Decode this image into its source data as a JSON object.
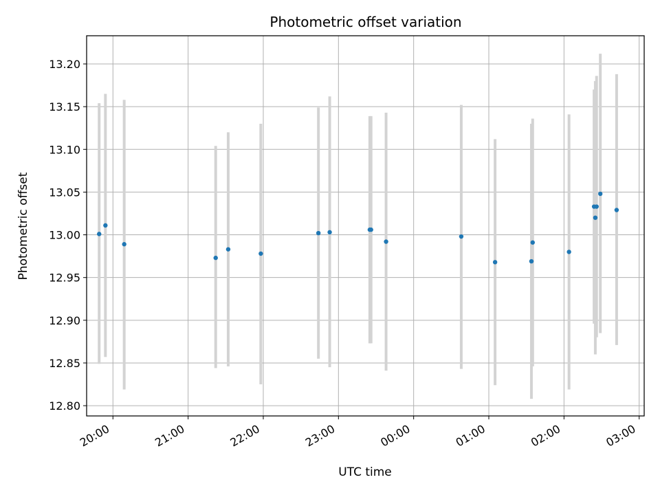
{
  "chart_data": {
    "type": "scatter",
    "title": "Photometric offset variation",
    "xlabel": "UTC time",
    "ylabel": "Photometric offset",
    "x_axis": "time",
    "xlim": [
      "19:39",
      "27:04"
    ],
    "ylim": [
      12.788,
      13.233
    ],
    "grid": true,
    "legend": "none",
    "marker_color": "#1f77b4",
    "errorbar_color": "#d3d3d3",
    "x_ticks": [
      {
        "label": "20:00",
        "t": "20:00"
      },
      {
        "label": "21:00",
        "t": "21:00"
      },
      {
        "label": "22:00",
        "t": "22:00"
      },
      {
        "label": "23:00",
        "t": "23:00"
      },
      {
        "label": "00:00",
        "t": "24:00"
      },
      {
        "label": "01:00",
        "t": "25:00"
      },
      {
        "label": "02:00",
        "t": "26:00"
      },
      {
        "label": "03:00",
        "t": "27:00"
      }
    ],
    "y_ticks": [
      {
        "label": "12.80",
        "v": 12.8
      },
      {
        "label": "12.85",
        "v": 12.85
      },
      {
        "label": "12.90",
        "v": 12.9
      },
      {
        "label": "12.95",
        "v": 12.95
      },
      {
        "label": "13.00",
        "v": 13.0
      },
      {
        "label": "13.05",
        "v": 13.05
      },
      {
        "label": "13.10",
        "v": 13.1
      },
      {
        "label": "13.15",
        "v": 13.15
      },
      {
        "label": "13.20",
        "v": 13.2
      }
    ],
    "points": [
      {
        "t": "19:49",
        "y": 13.001,
        "lo": 12.849,
        "hi": 13.154
      },
      {
        "t": "19:54",
        "y": 13.011,
        "lo": 12.857,
        "hi": 13.165
      },
      {
        "t": "20:09",
        "y": 12.989,
        "lo": 12.819,
        "hi": 13.158
      },
      {
        "t": "21:22",
        "y": 12.973,
        "lo": 12.844,
        "hi": 13.104
      },
      {
        "t": "21:32",
        "y": 12.983,
        "lo": 12.846,
        "hi": 13.12
      },
      {
        "t": "21:58",
        "y": 12.978,
        "lo": 12.825,
        "hi": 13.13
      },
      {
        "t": "22:44",
        "y": 13.002,
        "lo": 12.855,
        "hi": 13.149
      },
      {
        "t": "22:53",
        "y": 13.003,
        "lo": 12.845,
        "hi": 13.162
      },
      {
        "t": "23:25",
        "y": 13.006,
        "lo": 12.873,
        "hi": 13.139
      },
      {
        "t": "23:26",
        "y": 13.006,
        "lo": 12.873,
        "hi": 13.139
      },
      {
        "t": "23:38",
        "y": 12.992,
        "lo": 12.841,
        "hi": 13.143
      },
      {
        "t": "24:38",
        "y": 12.998,
        "lo": 12.843,
        "hi": 13.152
      },
      {
        "t": "25:05",
        "y": 12.968,
        "lo": 12.824,
        "hi": 13.112
      },
      {
        "t": "25:34",
        "y": 12.969,
        "lo": 12.808,
        "hi": 13.13
      },
      {
        "t": "25:35",
        "y": 12.991,
        "lo": 12.846,
        "hi": 13.136
      },
      {
        "t": "26:04",
        "y": 12.98,
        "lo": 12.819,
        "hi": 13.141
      },
      {
        "t": "26:24",
        "y": 13.033,
        "lo": 12.896,
        "hi": 13.17
      },
      {
        "t": "26:25",
        "y": 13.02,
        "lo": 12.86,
        "hi": 13.18
      },
      {
        "t": "26:26",
        "y": 13.033,
        "lo": 12.88,
        "hi": 13.186
      },
      {
        "t": "26:29",
        "y": 13.048,
        "lo": 12.885,
        "hi": 13.212
      },
      {
        "t": "26:42",
        "y": 13.029,
        "lo": 12.871,
        "hi": 13.188
      }
    ]
  }
}
